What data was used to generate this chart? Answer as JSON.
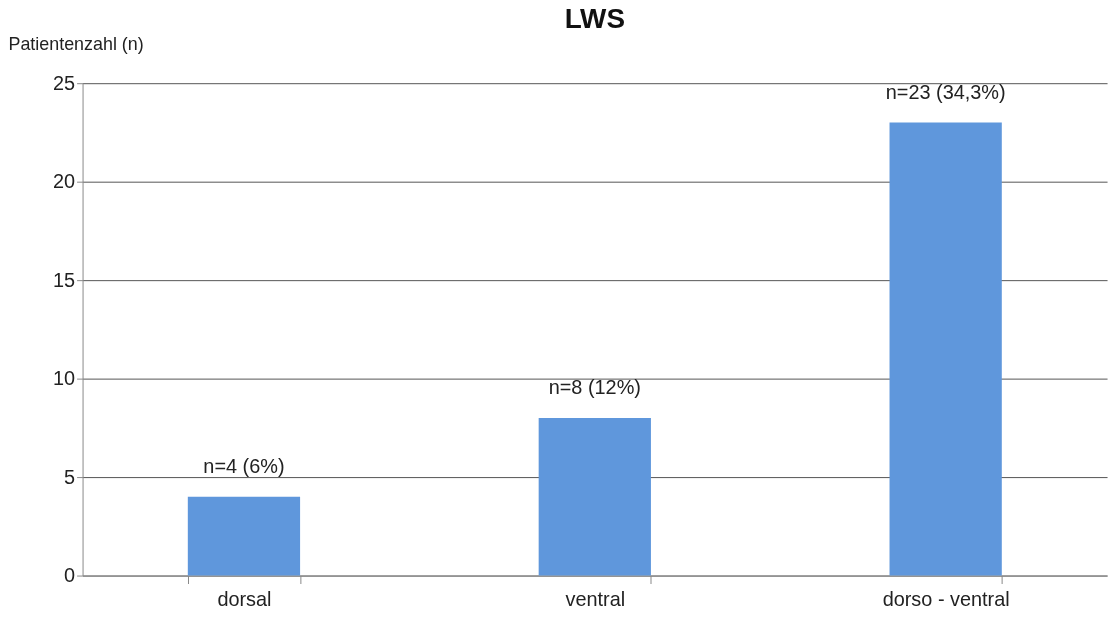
{
  "chart_data": {
    "type": "bar",
    "title": "LWS",
    "ylabel": "Patientenzahl (n)",
    "categories": [
      "dorsal",
      "ventral",
      "dorso - ventral"
    ],
    "values": [
      4,
      8,
      23
    ],
    "value_labels": [
      "n=4 (6%)",
      "n=8 (12%)",
      "n=23 (34,3%)"
    ],
    "color": "#5f97dc",
    "ylim": [
      0,
      25
    ],
    "yticks": [
      0,
      5,
      10,
      15,
      20,
      25
    ],
    "grid": "y"
  }
}
